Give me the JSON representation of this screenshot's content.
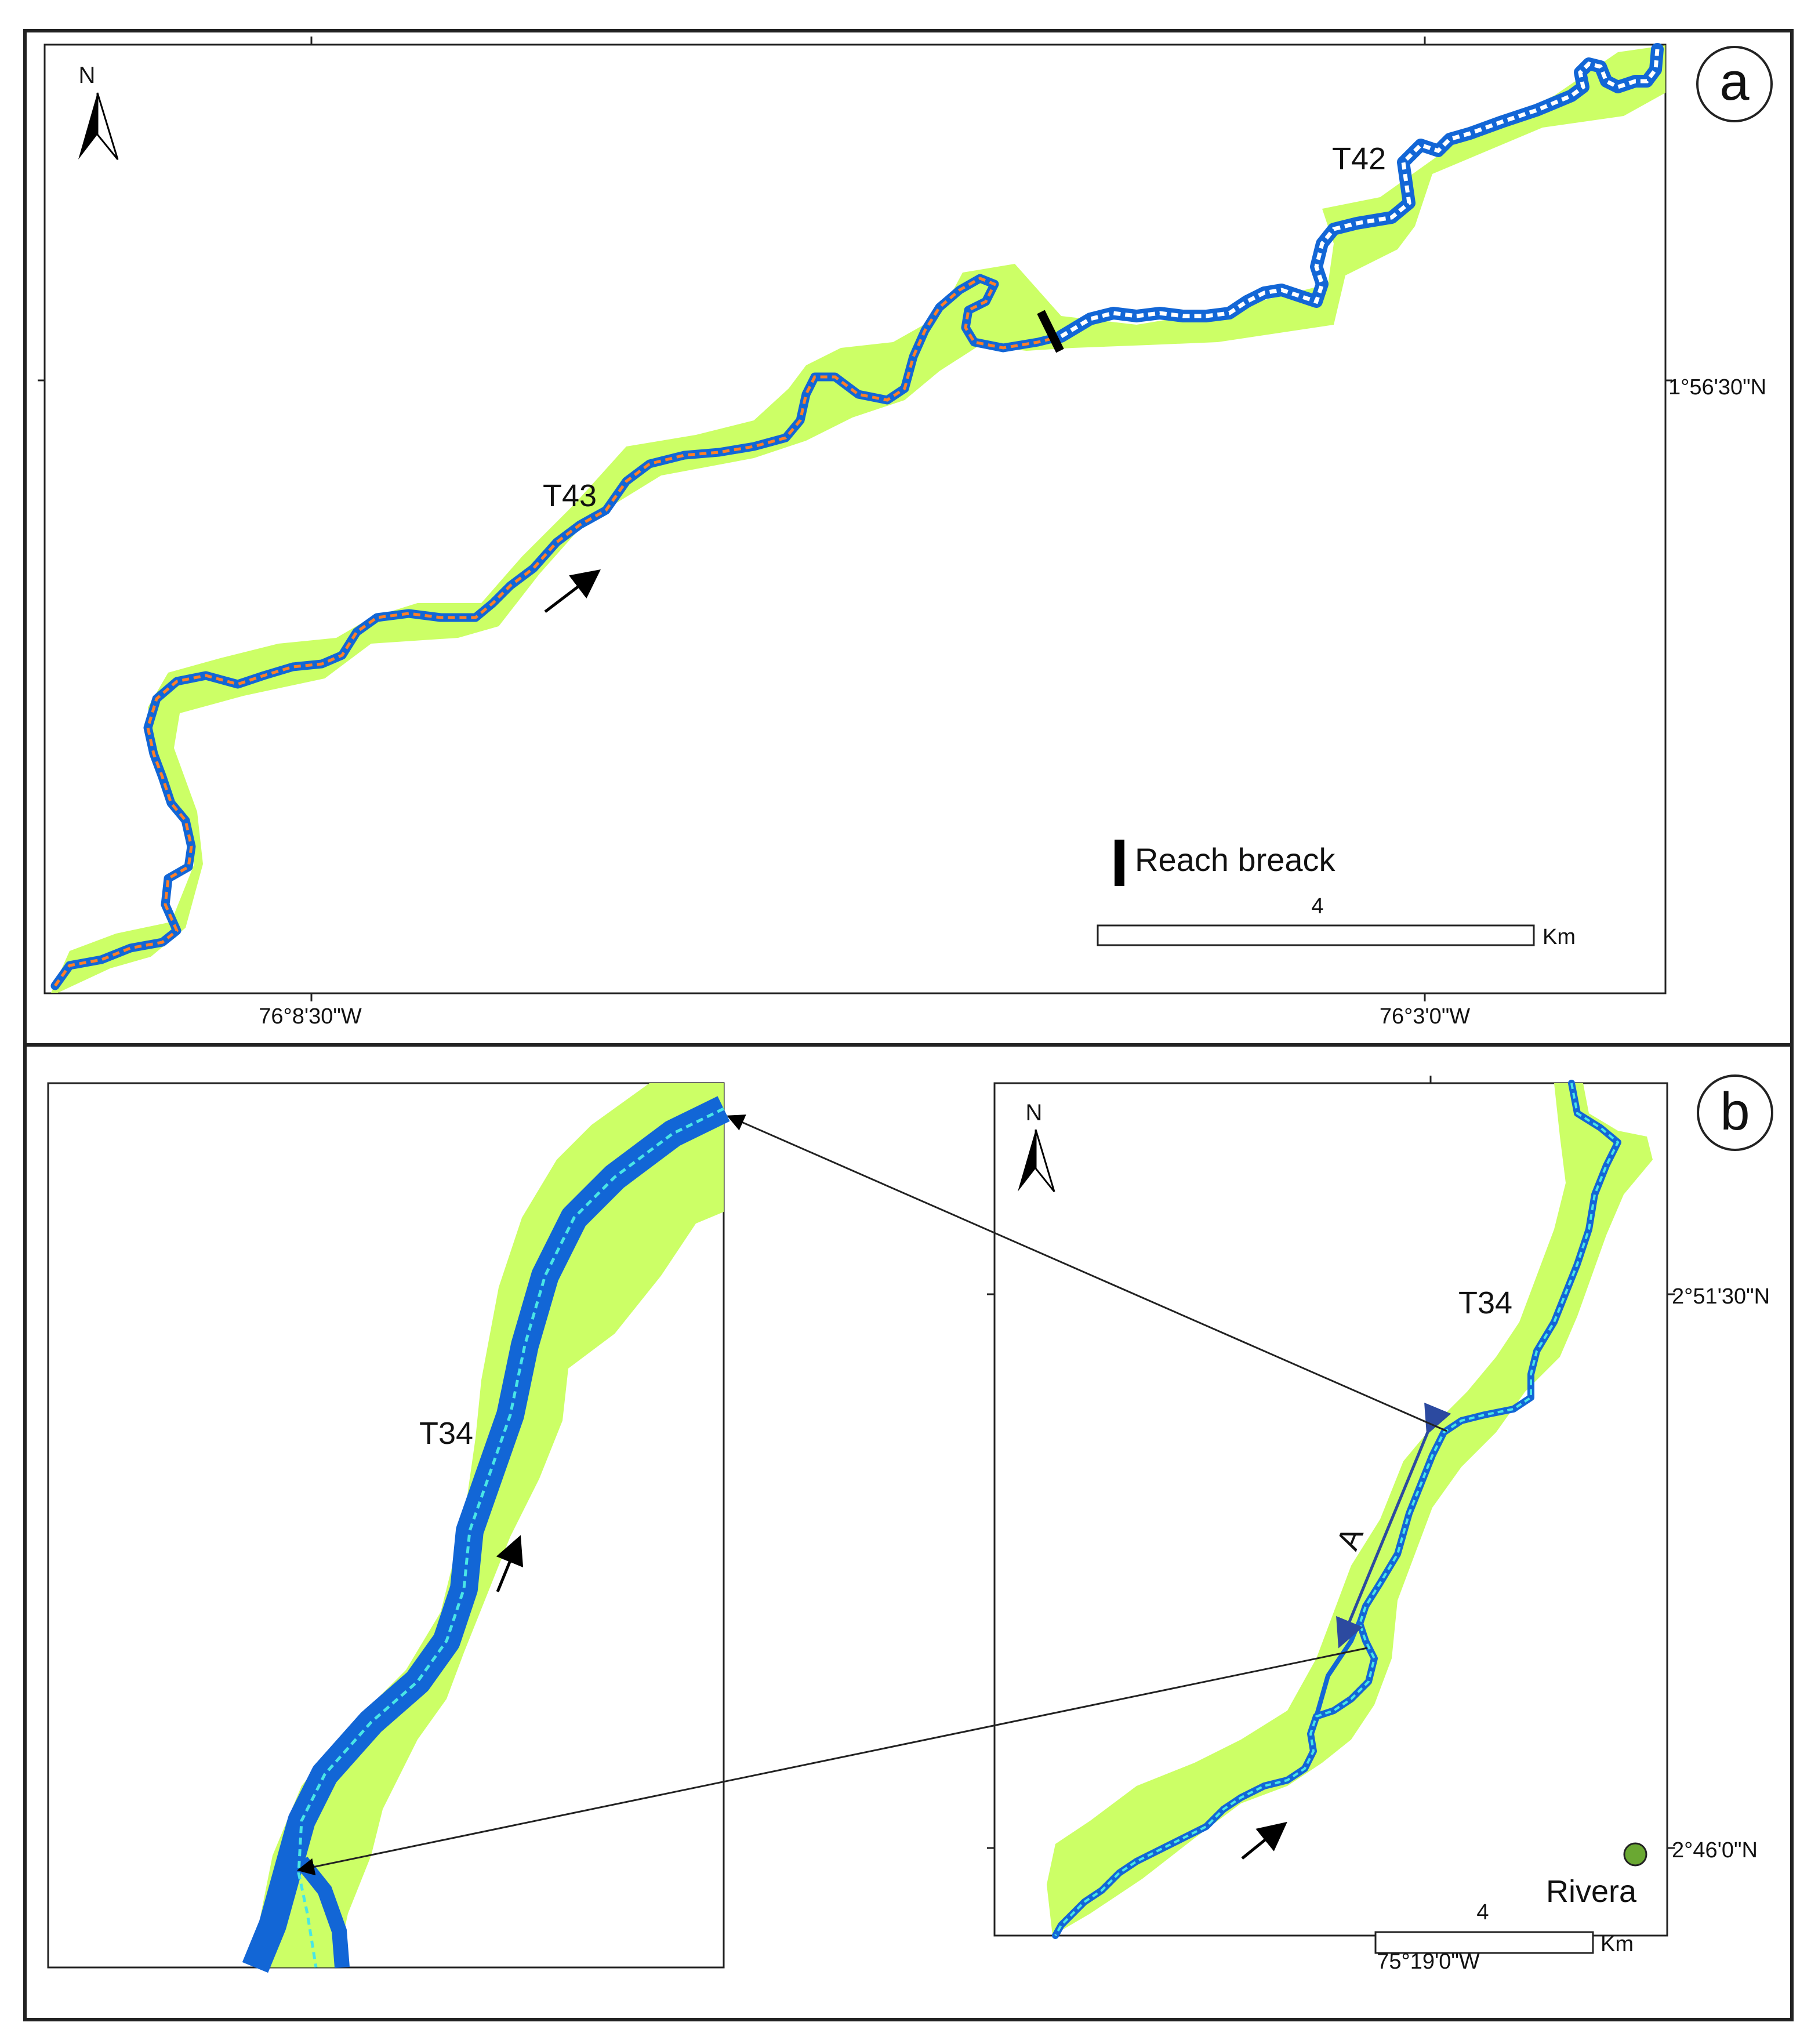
{
  "panel_a": {
    "label": "a",
    "north": "N",
    "reach_labels": [
      "T42",
      "T43"
    ],
    "reach_break_legend": "Reach breack",
    "scale_value": "4",
    "scale_unit": "Km",
    "lat_label": "1°56'30\"N",
    "lon_labels": [
      "76°8'30\"W",
      "76°3'0\"W"
    ]
  },
  "panel_b": {
    "label": "b",
    "north": "N",
    "reach_label": "T34",
    "inset_reach_label": "T34",
    "segment_label": "A",
    "town": "Rivera",
    "scale_value": "4",
    "scale_unit": "Km",
    "lat_labels": [
      "2°51'30\"N",
      "2°46'0\"N"
    ],
    "lon_label": "75°19'0\"W"
  },
  "colors": {
    "floodplain": "#ccff66",
    "channel": "#1266d6",
    "centerline_t43": "#ff7f27",
    "centerline_t42": "#ffffff",
    "centerline_t34": "#49e6e6",
    "town_marker": "#6aa832",
    "arrow_A": "#2c4aa0"
  }
}
